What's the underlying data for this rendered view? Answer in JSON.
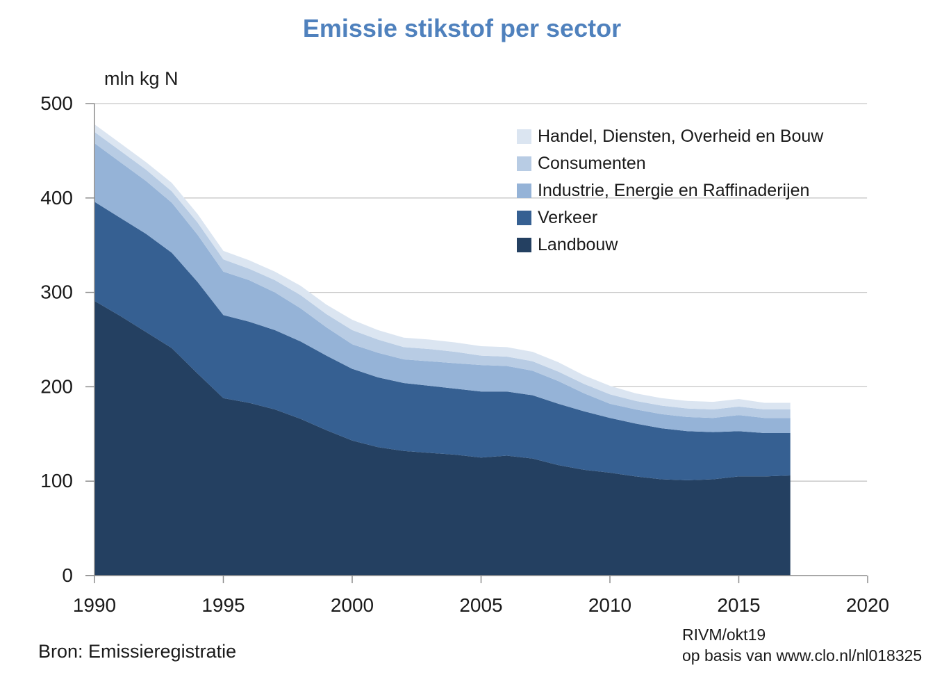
{
  "page": {
    "title": "Emissie stikstof per sector",
    "source_left": "Bron: Emissieregistratie",
    "source_right_line1": "RIVM/okt19",
    "source_right_line2": "op basis van www.clo.nl/nl018325"
  },
  "chart_data": {
    "type": "area",
    "stacked": true,
    "title": "Emissie stikstof per sector",
    "ylabel": "mln kg N",
    "xlabel": "",
    "ylim": [
      0,
      500
    ],
    "xlim": [
      1990,
      2020
    ],
    "yticks": [
      0,
      100,
      200,
      300,
      400,
      500
    ],
    "xticks": [
      1990,
      1995,
      2000,
      2005,
      2010,
      2015,
      2020
    ],
    "grid": "horizontal",
    "legend_position": "inside-top-right",
    "x": [
      1990,
      1991,
      1992,
      1993,
      1994,
      1995,
      1996,
      1997,
      1998,
      1999,
      2000,
      2001,
      2002,
      2003,
      2004,
      2005,
      2006,
      2007,
      2008,
      2009,
      2010,
      2011,
      2012,
      2013,
      2014,
      2015,
      2016,
      2017
    ],
    "series": [
      {
        "name": "Landbouw",
        "color": "#244061",
        "values": [
          291,
          275,
          258,
          241,
          214,
          188,
          183,
          176,
          166,
          154,
          143,
          136,
          132,
          130,
          128,
          125,
          127,
          124,
          117,
          112,
          109,
          105,
          102,
          101,
          102,
          105,
          105,
          106
        ]
      },
      {
        "name": "Verkeer",
        "color": "#366092",
        "values": [
          105,
          104,
          104,
          101,
          97,
          88,
          86,
          84,
          82,
          79,
          76,
          74,
          72,
          71,
          70,
          70,
          68,
          67,
          65,
          62,
          58,
          56,
          54,
          52,
          50,
          48,
          46,
          45
        ]
      },
      {
        "name": "Industrie, Energie en Raffinaderijen",
        "color": "#95B3D7",
        "values": [
          62,
          59,
          56,
          53,
          50,
          46,
          44,
          40,
          35,
          30,
          26,
          26,
          25,
          26,
          27,
          28,
          27,
          26,
          24,
          19,
          15,
          15,
          15,
          15,
          15,
          17,
          16,
          16
        ]
      },
      {
        "name": "Consumenten",
        "color": "#B8CCE4",
        "values": [
          12,
          12,
          12,
          12,
          13,
          13,
          12,
          13,
          14,
          14,
          15,
          14,
          13,
          13,
          12,
          10,
          10,
          10,
          10,
          10,
          10,
          9,
          9,
          9,
          9,
          9,
          9,
          9
        ]
      },
      {
        "name": "Handel, Diensten, Overheid en Bouw",
        "color": "#DBE5F1",
        "values": [
          8,
          8,
          8,
          9,
          9,
          9,
          9,
          9,
          10,
          10,
          11,
          10,
          10,
          10,
          10,
          10,
          10,
          10,
          10,
          9,
          9,
          8,
          8,
          8,
          8,
          8,
          7,
          7
        ]
      }
    ],
    "legend": [
      {
        "label": "Handel, Diensten, Overheid en Bouw",
        "color": "#DBE5F1"
      },
      {
        "label": "Consumenten",
        "color": "#B8CCE4"
      },
      {
        "label": "Industrie, Energie en Raffinaderijen",
        "color": "#95B3D7"
      },
      {
        "label": "Verkeer",
        "color": "#366092"
      },
      {
        "label": "Landbouw",
        "color": "#244061"
      }
    ]
  },
  "style": {
    "gridline_color": "#c6c6c6",
    "axis_color": "#8c8c8c",
    "tick_label_color": "#1a1a1a",
    "title_color": "#4F81BD"
  }
}
